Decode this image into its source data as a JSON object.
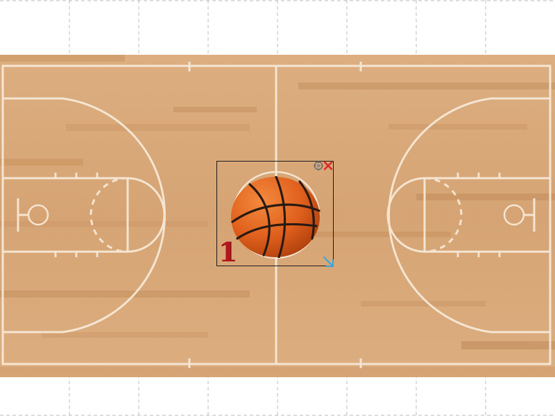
{
  "editor": {
    "selected_item_index": "1"
  },
  "icons": {
    "rotate": "rotate-icon",
    "close": "close-icon",
    "resize": "resize-arrow-icon",
    "ball": "basketball"
  },
  "colors": {
    "court_wood": "#d9a978",
    "court_lines": "#f8ecdc",
    "ball": "#e0601d",
    "close": "#e02828",
    "resize": "#3aa7d8",
    "index": "#b3161b"
  }
}
